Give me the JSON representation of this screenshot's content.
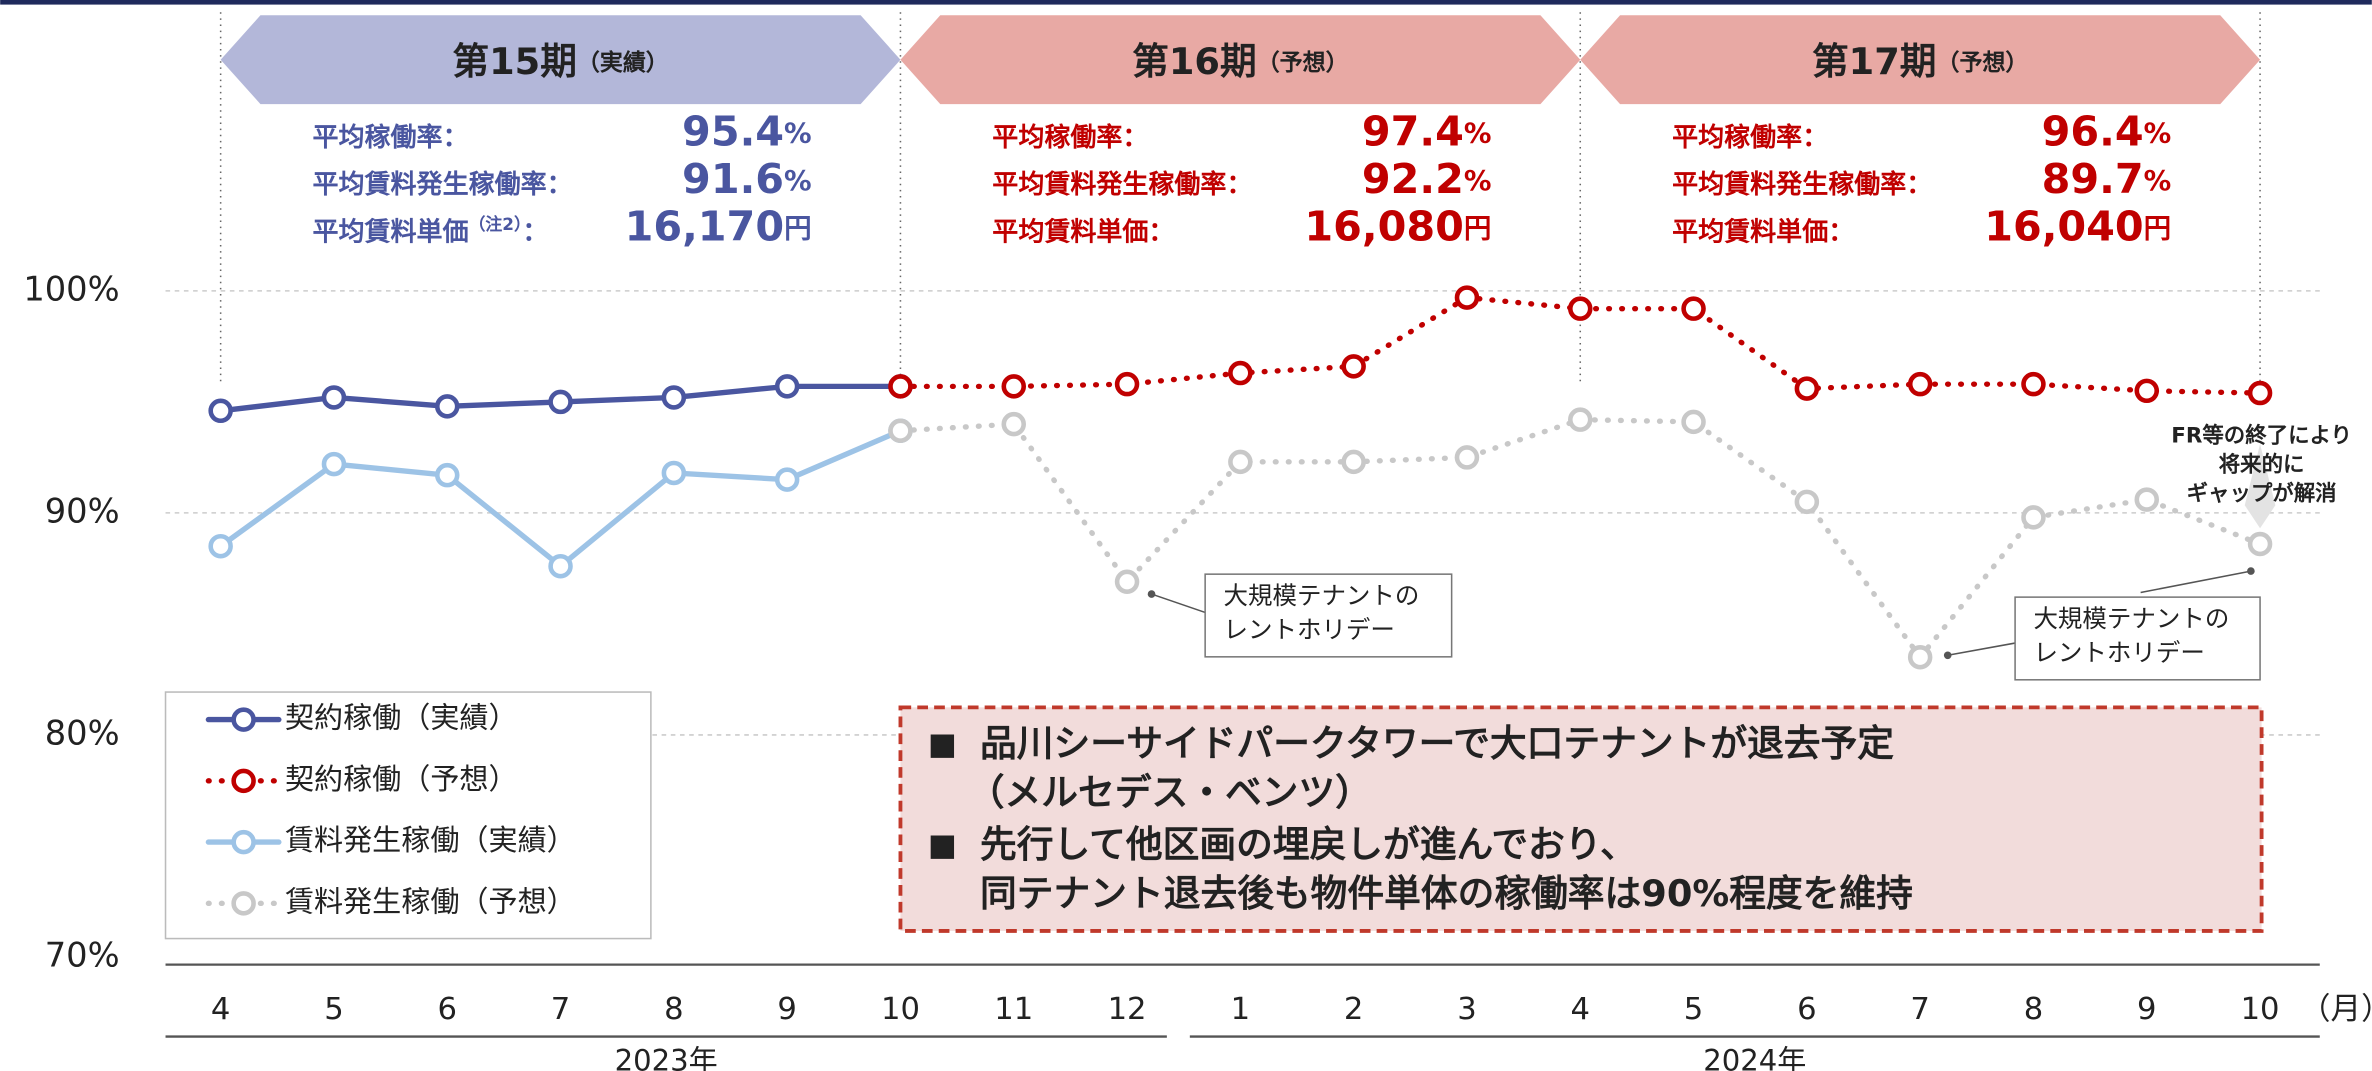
{
  "chart_data": {
    "type": "line",
    "categories": [
      "4",
      "5",
      "6",
      "7",
      "8",
      "9",
      "10",
      "11",
      "12",
      "1",
      "2",
      "3",
      "4",
      "5",
      "6",
      "7",
      "8",
      "9",
      "10"
    ],
    "x_unit": "（月）",
    "years": [
      {
        "label": "2023年",
        "from": 0,
        "to": 8
      },
      {
        "label": "2024年",
        "from": 9,
        "to": 18
      }
    ],
    "ylim": [
      70,
      100
    ],
    "yticks": [
      {
        "value": 70,
        "label": "70%"
      },
      {
        "value": 80,
        "label": "80%"
      },
      {
        "value": 90,
        "label": "90%"
      },
      {
        "value": 100,
        "label": "100%"
      }
    ],
    "grid": true,
    "series": [
      {
        "name": "契約稼働（実績）",
        "color": "#4a56a0",
        "style": "solid",
        "values": [
          94.6,
          95.2,
          94.8,
          95.0,
          95.2,
          95.7,
          95.7,
          null,
          null,
          null,
          null,
          null,
          null,
          null,
          null,
          null,
          null,
          null,
          null
        ]
      },
      {
        "name": "契約稼働（予想）",
        "color": "#c00000",
        "style": "dotted",
        "values": [
          null,
          null,
          null,
          null,
          null,
          null,
          95.7,
          95.7,
          95.8,
          96.3,
          96.6,
          99.7,
          99.2,
          99.2,
          95.6,
          95.8,
          95.8,
          95.5,
          95.4
        ]
      },
      {
        "name": "賃料発生稼働（実績）",
        "color": "#9dc3e6",
        "style": "solid",
        "values": [
          88.5,
          92.2,
          91.7,
          87.6,
          91.8,
          91.5,
          93.7,
          null,
          null,
          null,
          null,
          null,
          null,
          null,
          null,
          null,
          null,
          null,
          null
        ]
      },
      {
        "name": "賃料発生稼働（予想）",
        "color": "#c8c8c8",
        "style": "dotted",
        "values": [
          null,
          null,
          null,
          null,
          null,
          null,
          93.7,
          94.0,
          86.9,
          92.3,
          92.3,
          92.5,
          94.2,
          94.1,
          90.5,
          83.5,
          89.8,
          90.6,
          88.6
        ]
      }
    ],
    "periods": [
      {
        "title": "第15期",
        "sub": "（実績）",
        "color": "#4a56a0",
        "fill": "#b3b7d9",
        "from": 0,
        "to": 6,
        "rows": [
          {
            "label": "平均稼働率：",
            "value": "95.4",
            "unit": "%"
          },
          {
            "label": "平均賃料発生稼働率：",
            "value": "91.6",
            "unit": "%"
          },
          {
            "label": "平均賃料単価",
            "note": "（注2）",
            "colon": "：",
            "value": "16,170",
            "unit": "円"
          }
        ]
      },
      {
        "title": "第16期",
        "sub": "（予想）",
        "color": "#c00000",
        "fill": "#e8a9a4",
        "from": 6,
        "to": 12,
        "rows": [
          {
            "label": "平均稼働率：",
            "value": "97.4",
            "unit": "%"
          },
          {
            "label": "平均賃料発生稼働率：",
            "value": "92.2",
            "unit": "%"
          },
          {
            "label": "平均賃料単価：",
            "value": "16,080",
            "unit": "円"
          }
        ]
      },
      {
        "title": "第17期",
        "sub": "（予想）",
        "color": "#c00000",
        "fill": "#e8a9a4",
        "from": 12,
        "to": 18,
        "rows": [
          {
            "label": "平均稼働率：",
            "value": "96.4",
            "unit": "%"
          },
          {
            "label": "平均賃料発生稼働率：",
            "value": "89.7",
            "unit": "%"
          },
          {
            "label": "平均賃料単価：",
            "value": "16,040",
            "unit": "円"
          }
        ]
      }
    ],
    "annotations": [
      {
        "lines": [
          "大規模テナントの",
          "レントホリデー"
        ]
      },
      {
        "lines": [
          "大規模テナントの",
          "レントホリデー"
        ]
      },
      {
        "lines": [
          "FR等の終了により",
          "将来的に",
          "ギャップが解消"
        ]
      }
    ],
    "callout": [
      {
        "bullet": "■",
        "lines": [
          "品川シーサイドパークタワーで大口テナントが退去予定",
          "（メルセデス・ベンツ）"
        ]
      },
      {
        "bullet": "■",
        "lines": [
          "先行して他区画の埋戻しが進んでおり、",
          "同テナント退去後も物件単体の稼働率は90%程度を維持"
        ]
      }
    ]
  }
}
